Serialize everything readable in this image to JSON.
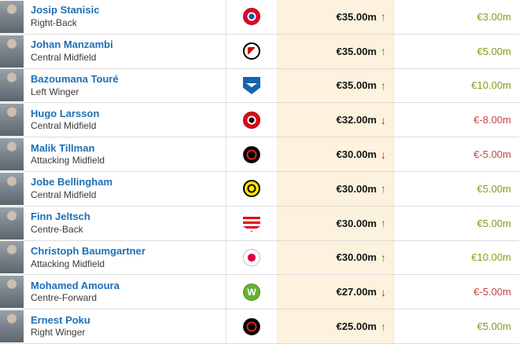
{
  "colors": {
    "link_blue": "#1d6fb7",
    "value_column_bg": "#fcf2dd",
    "positive_green": "#8a9a1b",
    "negative_red": "#cc4444",
    "arrow_up_green": "#2f9e2f",
    "arrow_down_red": "#c32222"
  },
  "table": {
    "rows": [
      {
        "player": "Josip Stanisic",
        "position": "Right-Back",
        "club_icon": "bayern-munich-badge-icon",
        "market_value": "€35.00m",
        "trend": "up",
        "trend_glyph": "↑",
        "change": "€3.00m"
      },
      {
        "player": "Johan Manzambi",
        "position": "Central Midfield",
        "club_icon": "sc-freiburg-badge-icon",
        "market_value": "€35.00m",
        "trend": "up",
        "trend_glyph": "↑",
        "change": "€5.00m"
      },
      {
        "player": "Bazoumana Touré",
        "position": "Left Winger",
        "club_icon": "tsg-hoffenheim-badge-icon",
        "market_value": "€35.00m",
        "trend": "up",
        "trend_glyph": "↑",
        "change": "€10.00m"
      },
      {
        "player": "Hugo Larsson",
        "position": "Central Midfield",
        "club_icon": "eintracht-frankfurt-badge-icon",
        "market_value": "€32.00m",
        "trend": "down",
        "trend_glyph": "↓",
        "change": "€-8.00m"
      },
      {
        "player": "Malik Tillman",
        "position": "Attacking Midfield",
        "club_icon": "bayer-leverkusen-badge-icon",
        "market_value": "€30.00m",
        "trend": "down",
        "trend_glyph": "↓",
        "change": "€-5.00m"
      },
      {
        "player": "Jobe Bellingham",
        "position": "Central Midfield",
        "club_icon": "borussia-dortmund-badge-icon",
        "market_value": "€30.00m",
        "trend": "up",
        "trend_glyph": "↑",
        "change": "€5.00m"
      },
      {
        "player": "Finn Jeltsch",
        "position": "Centre-Back",
        "club_icon": "vfb-stuttgart-badge-icon",
        "market_value": "€30.00m",
        "trend": "up",
        "trend_glyph": "↑",
        "change": "€5.00m"
      },
      {
        "player": "Christoph Baumgartner",
        "position": "Attacking Midfield",
        "club_icon": "rb-leipzig-badge-icon",
        "market_value": "€30.00m",
        "trend": "up",
        "trend_glyph": "↑",
        "change": "€10.00m"
      },
      {
        "player": "Mohamed Amoura",
        "position": "Centre-Forward",
        "club_icon": "vfl-wolfsburg-badge-icon",
        "badge_letter": "W",
        "market_value": "€27.00m",
        "trend": "down",
        "trend_glyph": "↓",
        "change": "€-5.00m"
      },
      {
        "player": "Ernest Poku",
        "position": "Right Winger",
        "club_icon": "bayer-leverkusen-badge-icon",
        "market_value": "€25.00m",
        "trend": "up",
        "trend_glyph": "↑",
        "change": "€5.00m"
      }
    ]
  }
}
